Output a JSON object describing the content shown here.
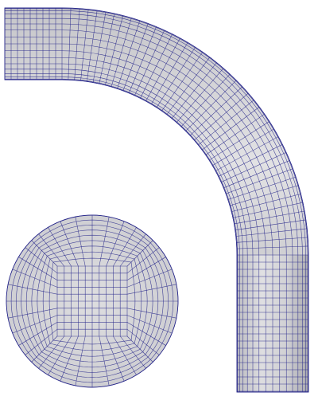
{
  "figure": {
    "background": "#ffffff",
    "surface_color": "#d6d6d8",
    "shade_color": "#a9a9ae",
    "highlight_color": "#ececee",
    "mesh_color": "#2a2a8c"
  },
  "pipe_bend": {
    "view": "side",
    "mesh": "structured-quad"
  },
  "pipe_cross_section": {
    "view": "end",
    "mesh": "o-grid-quad"
  }
}
